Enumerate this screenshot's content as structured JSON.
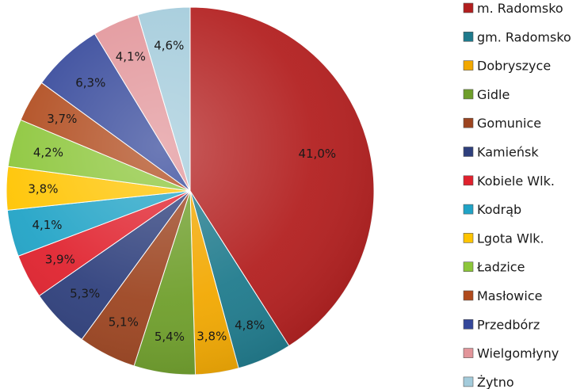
{
  "chart_data": {
    "type": "pie",
    "start_angle_deg": 0,
    "direction": "clockwise",
    "legend_position": "right",
    "slices": [
      {
        "name": "m. Radomsko",
        "value": 41.0,
        "label": "41,0%",
        "color": "#B21E1E"
      },
      {
        "name": "gm. Radomsko",
        "value": 4.8,
        "label": "4,8%",
        "color": "#1E7A8C"
      },
      {
        "name": "Dobryszyce",
        "value": 3.8,
        "label": "3,8%",
        "color": "#F2A800"
      },
      {
        "name": "Gidle",
        "value": 5.4,
        "label": "5,4%",
        "color": "#6E9E2A"
      },
      {
        "name": "Gomunice",
        "value": 5.1,
        "label": "5,1%",
        "color": "#9C4420"
      },
      {
        "name": "Kamieńsk",
        "value": 5.3,
        "label": "5,3%",
        "color": "#2E3F7C"
      },
      {
        "name": "Kobiele Wlk.",
        "value": 3.9,
        "label": "3,9%",
        "color": "#E0212D"
      },
      {
        "name": "Kodrąb",
        "value": 4.1,
        "label": "4,1%",
        "color": "#20A3C6"
      },
      {
        "name": "Lgota Wlk.",
        "value": 3.8,
        "label": "3,8%",
        "color": "#FFC400"
      },
      {
        "name": "Ładzice",
        "value": 4.2,
        "label": "4,2%",
        "color": "#8CC63A"
      },
      {
        "name": "Masłowice",
        "value": 3.7,
        "label": "3,7%",
        "color": "#B04A1C"
      },
      {
        "name": "Przedbórz",
        "value": 6.3,
        "label": "6,3%",
        "color": "#34479A"
      },
      {
        "name": "Wielgomłyny",
        "value": 4.1,
        "label": "4,1%",
        "color": "#E2959A"
      },
      {
        "name": "Żytno",
        "value": 4.6,
        "label": "4,6%",
        "color": "#A3CBDB"
      }
    ]
  }
}
